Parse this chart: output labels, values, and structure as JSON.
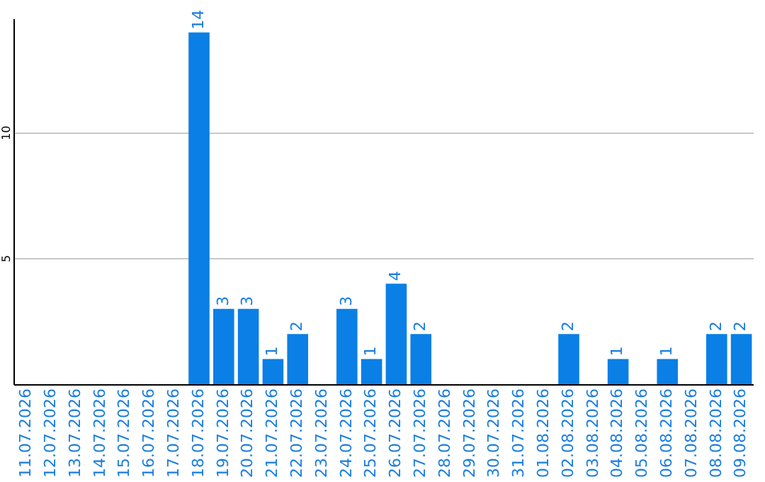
{
  "chart_data": {
    "type": "bar",
    "categories": [
      "11.07.2026",
      "12.07.2026",
      "13.07.2026",
      "14.07.2026",
      "15.07.2026",
      "16.07.2026",
      "17.07.2026",
      "18.07.2026",
      "19.07.2026",
      "20.07.2026",
      "21.07.2026",
      "22.07.2026",
      "23.07.2026",
      "24.07.2026",
      "25.07.2026",
      "26.07.2026",
      "27.07.2026",
      "28.07.2026",
      "29.07.2026",
      "30.07.2026",
      "31.07.2026",
      "01.08.2026",
      "02.08.2026",
      "03.08.2026",
      "04.08.2026",
      "05.08.2026",
      "06.08.2026",
      "07.08.2026",
      "08.08.2026",
      "09.08.2026"
    ],
    "values": [
      0,
      0,
      0,
      0,
      0,
      0,
      0,
      14,
      3,
      3,
      1,
      2,
      0,
      3,
      1,
      4,
      2,
      0,
      0,
      0,
      0,
      0,
      2,
      0,
      1,
      0,
      1,
      0,
      2,
      2
    ],
    "value_labels": [
      null,
      null,
      null,
      null,
      null,
      null,
      null,
      "14",
      "3",
      "3",
      "1",
      "2",
      null,
      "3",
      "1",
      "4",
      "2",
      null,
      null,
      null,
      null,
      null,
      "2",
      null,
      "1",
      null,
      "1",
      null,
      "2",
      "2"
    ],
    "color": "#0a7fe6",
    "ylim": [
      0,
      14.5
    ],
    "yticks": [
      5,
      10
    ],
    "grid": "y",
    "legend": false
  }
}
